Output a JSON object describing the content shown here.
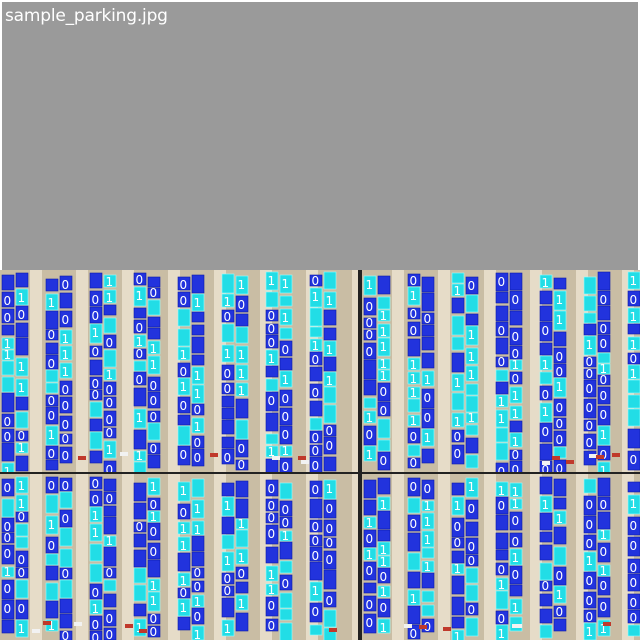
{
  "window": {
    "title": "sample_parking.jpg"
  },
  "colors": {
    "background": "#9a9a9a",
    "lot_surface": "#c9bda4",
    "lot_edge": "#b6a98f",
    "curb": "#e6dcc8",
    "class0_box": "#2233dd",
    "class1_box": "#22dde6",
    "label_text": "#ffffff",
    "divider": "#222222"
  },
  "legend": {
    "class0_label": "0",
    "class1_label": "1"
  },
  "mosaic": {
    "rows": 2,
    "cols": 2,
    "tiles": [
      {
        "id": "tile-top-left"
      },
      {
        "id": "tile-top-right"
      },
      {
        "id": "tile-bottom-left"
      },
      {
        "id": "tile-bottom-right"
      }
    ]
  }
}
